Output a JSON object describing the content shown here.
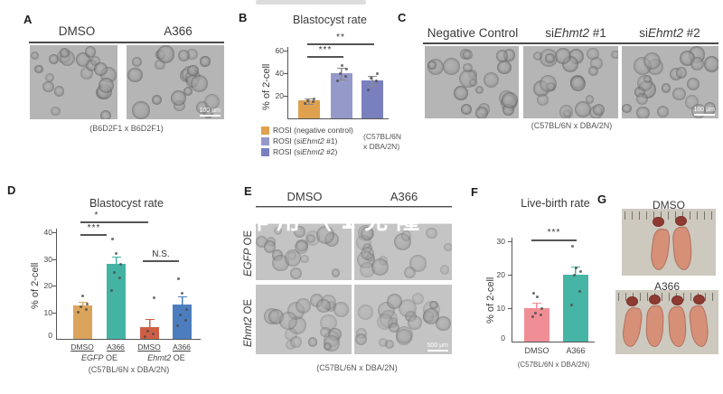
{
  "panels": {
    "a": {
      "label": "A",
      "headers": [
        "DMSO",
        "A366"
      ],
      "caption": "(B6D2F1 x B6D2F1)",
      "scale_bar": "100 µm"
    },
    "b": {
      "label": "B",
      "legend": [
        {
          "pre": "ROSI (negative control)",
          "gene": "",
          "post": ""
        },
        {
          "pre": "ROSI (si",
          "gene": "Ehmt2",
          "post": " #1)"
        },
        {
          "pre": "ROSI (si",
          "gene": "Ehmt2",
          "post": " #2)"
        }
      ],
      "strain_line1": "(C57BL/6N",
      "strain_line2": "x DBA/2N)"
    },
    "c": {
      "label": "C",
      "headers": [
        {
          "pre": "Negative Control",
          "gene": "",
          "post": ""
        },
        {
          "pre": "si",
          "gene": "Ehmt2",
          "post": " #1"
        },
        {
          "pre": "si",
          "gene": "Ehmt2",
          "post": " #2"
        }
      ],
      "caption": "(C57BL/6N x DBA/2N)",
      "scale_bar": "100 µm"
    },
    "d": {
      "label": "D",
      "caption": "(C57BL/6N x DBA/2N)",
      "groups": [
        {
          "gene": "EGFP",
          "post": " OE"
        },
        {
          "gene": "Ehmt2",
          "post": " OE"
        }
      ]
    },
    "e": {
      "label": "E",
      "headers": [
        "DMSO",
        "A366"
      ],
      "rows": [
        {
          "gene": "EGFP",
          "post": " OE"
        },
        {
          "gene": "Ehmt2",
          "post": " OE"
        }
      ],
      "caption": "(C57BL/6N x DBA/2N)",
      "scale_bar": "500 µm"
    },
    "f": {
      "label": "F",
      "caption": "(C57BL/6N x DBA/2N)"
    },
    "g": {
      "label": "G",
      "headers": [
        "DMSO",
        "A366"
      ]
    }
  },
  "watermark": {
    "text": "的作用（1克隆"
  },
  "chart_data": [
    {
      "id": "panel_b",
      "type": "bar",
      "title": "Blastocyst rate",
      "ylabel": "% of 2-cell",
      "ylim": [
        0,
        60
      ],
      "yticks": [
        20,
        40,
        60
      ],
      "categories": [
        "ROSI (negative control)",
        "ROSI (siEhmt2 #1)",
        "ROSI (siEhmt2 #2)"
      ],
      "values": [
        16,
        40,
        34
      ],
      "errors": [
        2,
        5,
        4
      ],
      "points": [
        [
          13,
          15,
          16,
          17
        ],
        [
          33,
          37,
          40,
          44,
          47
        ],
        [
          25,
          33,
          36,
          40
        ]
      ],
      "colors": [
        "#DFA14E",
        "#9599C9",
        "#7A80BE"
      ],
      "error_color": "#8a8a8a",
      "significance": [
        {
          "between": [
            "ROSI (negative control)",
            "ROSI (siEhmt2 #1)"
          ],
          "label": "***"
        },
        {
          "between": [
            "ROSI (negative control)",
            "ROSI (siEhmt2 #2)"
          ],
          "label": "**"
        }
      ],
      "note": "(C57BL/6N x DBA/2N)"
    },
    {
      "id": "panel_d",
      "type": "bar",
      "title": "Blastocyst rate",
      "ylabel": "% of 2-cell",
      "ylim": [
        0,
        40
      ],
      "yticks": [
        0,
        10,
        20,
        30,
        40
      ],
      "categories": [
        "DMSO (EGFP OE)",
        "A366 (EGFP OE)",
        "DMSO (Ehmt2 OE)",
        "A366 (Ehmt2 OE)"
      ],
      "xticklabels": [
        "DMSO",
        "A366",
        "DMSO",
        "A366"
      ],
      "values": [
        12.5,
        28,
        4.5,
        13
      ],
      "errors": [
        1.5,
        3,
        3,
        3
      ],
      "points": [
        [
          10,
          11,
          12,
          13,
          16
        ],
        [
          18,
          23,
          25,
          28,
          32,
          37.5
        ],
        [
          1,
          2,
          3,
          15.5
        ],
        [
          5,
          7,
          9,
          11,
          17,
          22.5
        ]
      ],
      "colors": [
        "#DBA45C",
        "#44B3A3",
        "#CE5F45",
        "#4C7EBF"
      ],
      "significance": [
        {
          "between": [
            "DMSO (EGFP OE)",
            "A366 (EGFP OE)"
          ],
          "label": "***"
        },
        {
          "between": [
            "DMSO (EGFP OE)",
            "DMSO (Ehmt2 OE)"
          ],
          "label": "*"
        },
        {
          "between": [
            "DMSO (Ehmt2 OE)",
            "A366 (Ehmt2 OE)"
          ],
          "label": "N.S."
        }
      ],
      "note": "(C57BL/6N x DBA/2N)"
    },
    {
      "id": "panel_f",
      "type": "bar",
      "title": "Live-birth rate",
      "ylabel": "% of 2-cell",
      "ylim": [
        0,
        30
      ],
      "yticks": [
        0,
        10,
        20,
        30
      ],
      "categories": [
        "DMSO",
        "A366"
      ],
      "values": [
        10,
        20
      ],
      "errors": [
        1.5,
        2.5
      ],
      "points": [
        [
          7.5,
          8,
          8.5,
          10,
          13.5,
          14.5
        ],
        [
          11,
          15,
          20,
          21,
          22,
          28.5
        ]
      ],
      "colors": [
        "#F08E96",
        "#46B5A5"
      ],
      "significance": [
        {
          "between": [
            "DMSO",
            "A366"
          ],
          "label": "***"
        }
      ],
      "note": "(C57BL/6N x DBA/2N)"
    }
  ]
}
